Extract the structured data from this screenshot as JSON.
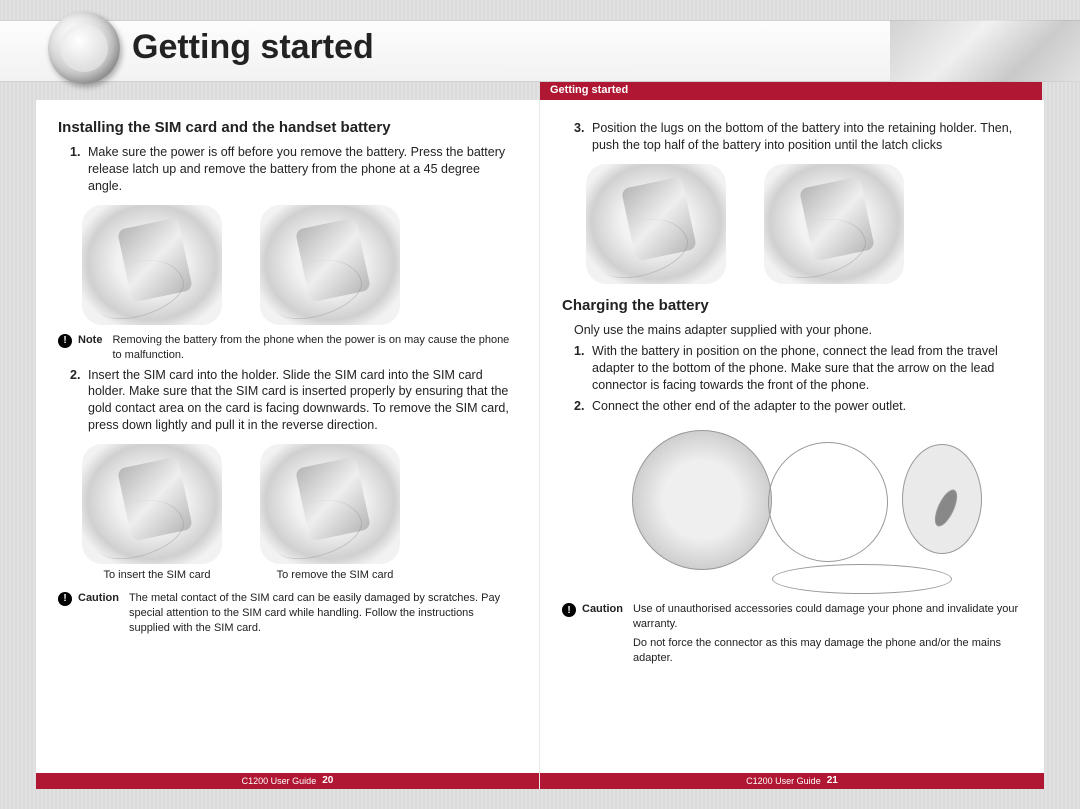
{
  "colors": {
    "accent": "#b01732",
    "text": "#222222",
    "page_bg": "#ffffff"
  },
  "header": {
    "title": "Getting started",
    "subhead": "Getting started"
  },
  "left": {
    "section_title": "Installing the SIM card and the handset battery",
    "step1": {
      "num": "1.",
      "text": "Make sure the power is off before you remove the battery. Press the battery release latch up and remove the battery from the phone at a 45 degree angle."
    },
    "note": {
      "label": "Note",
      "text": "Removing the battery from the phone when the power is on may cause the phone to malfunction."
    },
    "step2": {
      "num": "2.",
      "text": "Insert the SIM card into the holder. Slide the SIM card into the SIM card holder. Make sure that the SIM card is inserted properly by ensuring that the gold contact area on the card is facing downwards. To remove the SIM card, press down lightly and pull it in the reverse direction."
    },
    "fig_caption_insert": "To insert the SIM card",
    "fig_caption_remove": "To remove the SIM card",
    "caution": {
      "label": "Caution",
      "text": "The metal contact of the SIM card can be easily damaged by scratches. Pay special attention to the SIM card while handling. Follow the instructions supplied with the SIM card."
    },
    "footer": {
      "guide": "C1200 User Guide",
      "page": "20"
    }
  },
  "right": {
    "step3": {
      "num": "3.",
      "text": "Position the lugs on the bottom of the battery into the retaining holder. Then, push the top half of the battery into position until the latch clicks"
    },
    "charging_title": "Charging the battery",
    "charging_intro": "Only use the mains adapter supplied with your phone.",
    "cstep1": {
      "num": "1.",
      "text": "With the battery in position on the phone, connect the lead from the travel adapter to the bottom of the phone. Make sure that the arrow on the lead connector is facing towards the front of the phone."
    },
    "cstep2": {
      "num": "2.",
      "text": "Connect the other end of the adapter to the power outlet."
    },
    "caution": {
      "label": "Caution",
      "text1": "Use of unauthorised accessories could damage your phone and invalidate your warranty.",
      "text2": "Do not force the connector as this may damage the phone and/or the mains adapter."
    },
    "footer": {
      "guide": "C1200 User Guide",
      "page": "21"
    }
  }
}
